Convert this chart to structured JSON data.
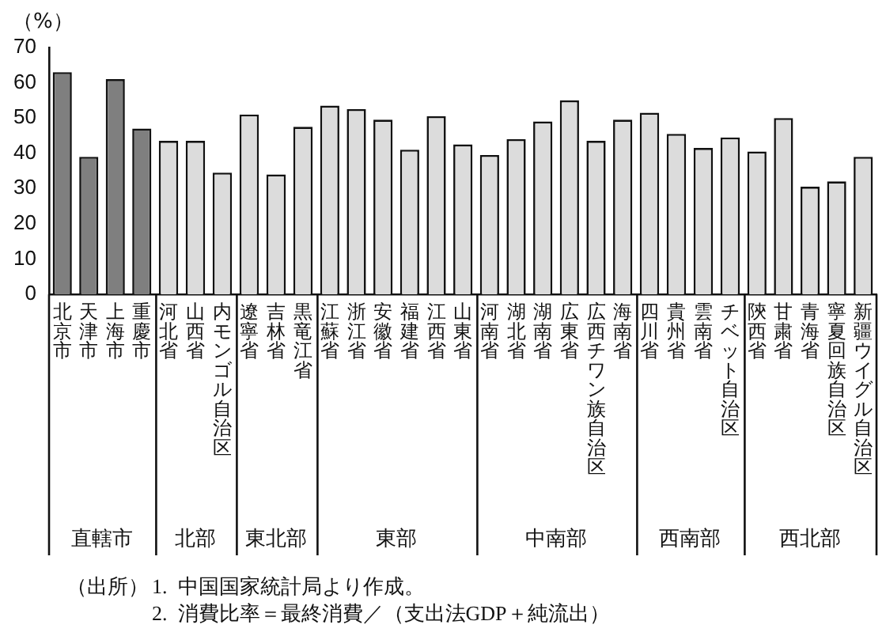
{
  "chart_data": [
    {
      "type": "bar",
      "ylabel": "（%）",
      "xlabel": "直轄市",
      "categories": [
        "北京市",
        "天津市",
        "上海市",
        "重慶市"
      ],
      "values": [
        63,
        39,
        61,
        47
      ],
      "color": "#7f7f7f",
      "ylim": [
        0,
        70
      ],
      "yticks": [
        0,
        10,
        20,
        30,
        40,
        50,
        60,
        70
      ],
      "annotations": [
        "（出所）",
        "1.  中国国家統計局より作成。",
        "2.  消費比率＝最終消費／（支出法GDP＋純流出）"
      ]
    },
    {
      "type": "bar",
      "xlabel": "北部",
      "categories": [
        "河北省",
        "山西省",
        "内モンゴル自治区"
      ],
      "values": [
        43.5,
        43.5,
        34.5
      ],
      "color": "#dcdcdc",
      "ylim": [
        0,
        70
      ],
      "tick_labels": "x"
    },
    {
      "type": "bar",
      "xlabel": "東北部",
      "categories": [
        "遼寧省",
        "吉林省",
        "黒竜江省"
      ],
      "values": [
        51,
        34,
        47.5
      ],
      "color": "#dcdcdc",
      "ylim": [
        0,
        70
      ],
      "tick_labels": "x"
    },
    {
      "type": "bar",
      "xlabel": "東部",
      "categories": [
        "江蘇省",
        "浙江省",
        "安徽省",
        "福建省",
        "江西省",
        "山東省"
      ],
      "values": [
        53.5,
        52.5,
        49.5,
        41,
        50.5,
        42.5
      ],
      "color": "#dcdcdc",
      "ylim": [
        0,
        70
      ],
      "tick_labels": "x"
    },
    {
      "type": "bar",
      "xlabel": "中南部",
      "categories": [
        "河南省",
        "湖北省",
        "湖南省",
        "広東省",
        "広西チワン族自治区",
        "海南省"
      ],
      "values": [
        39.5,
        44,
        49,
        55,
        43.5,
        49.5
      ],
      "color": "#dcdcdc",
      "ylim": [
        0,
        70
      ],
      "tick_labels": "x"
    },
    {
      "type": "bar",
      "xlabel": "西南部",
      "categories": [
        "四川省",
        "貴州省",
        "雲南省",
        "チベット自治区"
      ],
      "values": [
        51.5,
        45.5,
        41.5,
        44.5
      ],
      "color": "#dcdcdc",
      "ylim": [
        0,
        70
      ],
      "tick_labels": "x"
    },
    {
      "type": "bar",
      "xlabel": "西北部",
      "categories": [
        "陝西省",
        "甘粛省",
        "青海省",
        "寧夏回族自治区",
        "新疆ウイグル自治区"
      ],
      "values": [
        40.5,
        50,
        30.5,
        32,
        39
      ],
      "color": "#dcdcdc",
      "ylim": [
        0,
        70
      ],
      "tick_labels": "x"
    }
  ]
}
